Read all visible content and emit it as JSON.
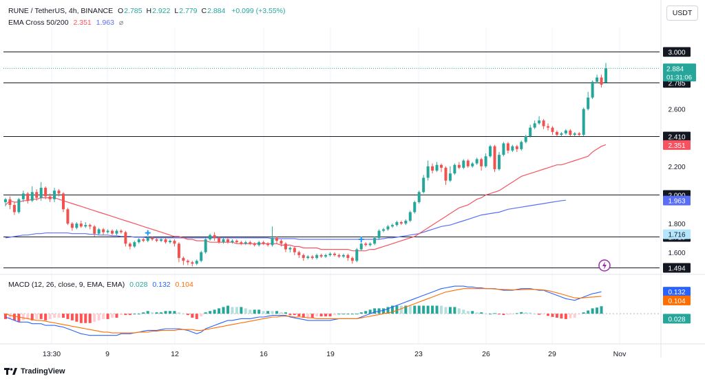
{
  "header": {
    "symbol": "RUNE / TetherUS, 4h, BINANCE",
    "ohlc": [
      {
        "k": "O",
        "v": "2.785"
      },
      {
        "k": "H",
        "v": "2.922"
      },
      {
        "k": "L",
        "v": "2.779"
      },
      {
        "k": "C",
        "v": "2.884"
      }
    ],
    "change": "+0.099 (+3.55%)",
    "ema_label": "EMA Cross 50/200",
    "ema_short": "2.351",
    "ema_long": "1.963",
    "ema_suffix": "⌀",
    "currency_button": "USDT",
    "macd_label": "MACD (12, 26, close, 9, EMA, EMA)",
    "macd_hist": "0.028",
    "macd_line": "0.132",
    "macd_signal": "0.104",
    "brand": "TradingView"
  },
  "colors": {
    "up": "#26a69a",
    "down": "#ef5350",
    "ema_short": "#f7525f",
    "ema_long": "#5a6ef5",
    "macd_line": "#2962ff",
    "macd_signal": "#ff6d00",
    "level": "#131722",
    "axis_text": "#131722",
    "grid": "#f0f3fa"
  },
  "chart_data": {
    "type": "candlestick",
    "x_ticks": [
      "13:30",
      "9",
      "12",
      "16",
      "19",
      "23",
      "26",
      "29",
      "Nov"
    ],
    "price_ticks": [
      "2.600",
      "2.200",
      "1.800",
      "1.600"
    ],
    "horizontal_levels": [
      "3.000",
      "2.785",
      "2.410",
      "2.000",
      "1.710",
      "1.494"
    ],
    "last_price": {
      "value": "2.884",
      "countdown": "01:31:06"
    },
    "ema_labels": {
      "short": "2.351",
      "long": "1.963",
      "cross": "1.716"
    },
    "ylim": [
      1.45,
      3.15
    ],
    "candles": [
      [
        1.95,
        1.97,
        1.92,
        1.98
      ],
      [
        1.97,
        1.93,
        1.9,
        1.99
      ],
      [
        1.93,
        1.88,
        1.86,
        1.95
      ],
      [
        1.88,
        1.97,
        1.87,
        1.98
      ],
      [
        1.97,
        2.01,
        1.95,
        2.03
      ],
      [
        2.01,
        1.96,
        1.94,
        2.02
      ],
      [
        1.96,
        2.02,
        1.95,
        2.06
      ],
      [
        2.02,
        1.98,
        1.96,
        2.04
      ],
      [
        1.98,
        2.05,
        1.96,
        2.09
      ],
      [
        2.05,
        1.99,
        1.97,
        2.06
      ],
      [
        1.99,
        1.97,
        1.95,
        2.01
      ],
      [
        1.97,
        2.03,
        1.95,
        2.05
      ],
      [
        2.03,
        2.01,
        1.99,
        2.04
      ],
      [
        2.01,
        1.9,
        1.88,
        2.02
      ],
      [
        1.9,
        1.8,
        1.79,
        1.91
      ],
      [
        1.8,
        1.77,
        1.75,
        1.81
      ],
      [
        1.77,
        1.8,
        1.76,
        1.81
      ],
      [
        1.8,
        1.78,
        1.77,
        1.82
      ],
      [
        1.78,
        1.79,
        1.77,
        1.81
      ],
      [
        1.79,
        1.78,
        1.76,
        1.8
      ],
      [
        1.78,
        1.73,
        1.71,
        1.79
      ],
      [
        1.73,
        1.76,
        1.72,
        1.77
      ],
      [
        1.76,
        1.74,
        1.72,
        1.77
      ],
      [
        1.74,
        1.75,
        1.73,
        1.76
      ],
      [
        1.75,
        1.73,
        1.72,
        1.76
      ],
      [
        1.73,
        1.75,
        1.72,
        1.76
      ],
      [
        1.75,
        1.74,
        1.73,
        1.76
      ],
      [
        1.74,
        1.66,
        1.64,
        1.75
      ],
      [
        1.66,
        1.64,
        1.62,
        1.67
      ],
      [
        1.64,
        1.67,
        1.63,
        1.68
      ],
      [
        1.67,
        1.69,
        1.66,
        1.7
      ],
      [
        1.69,
        1.68,
        1.67,
        1.7
      ],
      [
        1.68,
        1.7,
        1.67,
        1.71
      ],
      [
        1.7,
        1.69,
        1.68,
        1.71
      ],
      [
        1.69,
        1.68,
        1.67,
        1.7
      ],
      [
        1.68,
        1.69,
        1.67,
        1.7
      ],
      [
        1.69,
        1.67,
        1.66,
        1.7
      ],
      [
        1.67,
        1.68,
        1.66,
        1.69
      ],
      [
        1.68,
        1.66,
        1.64,
        1.69
      ],
      [
        1.66,
        1.56,
        1.53,
        1.67
      ],
      [
        1.56,
        1.54,
        1.51,
        1.57
      ],
      [
        1.54,
        1.53,
        1.51,
        1.55
      ],
      [
        1.53,
        1.52,
        1.5,
        1.54
      ],
      [
        1.52,
        1.54,
        1.51,
        1.55
      ],
      [
        1.54,
        1.6,
        1.53,
        1.61
      ],
      [
        1.6,
        1.69,
        1.59,
        1.7
      ],
      [
        1.69,
        1.72,
        1.68,
        1.73
      ],
      [
        1.72,
        1.7,
        1.68,
        1.74
      ],
      [
        1.7,
        1.67,
        1.66,
        1.71
      ],
      [
        1.67,
        1.69,
        1.66,
        1.7
      ],
      [
        1.69,
        1.67,
        1.66,
        1.7
      ],
      [
        1.67,
        1.68,
        1.66,
        1.69
      ],
      [
        1.68,
        1.67,
        1.66,
        1.69
      ],
      [
        1.67,
        1.66,
        1.65,
        1.68
      ],
      [
        1.66,
        1.67,
        1.65,
        1.68
      ],
      [
        1.67,
        1.66,
        1.65,
        1.68
      ],
      [
        1.66,
        1.65,
        1.64,
        1.67
      ],
      [
        1.65,
        1.67,
        1.64,
        1.68
      ],
      [
        1.67,
        1.66,
        1.65,
        1.68
      ],
      [
        1.66,
        1.65,
        1.64,
        1.67
      ],
      [
        1.65,
        1.7,
        1.64,
        1.78
      ],
      [
        1.7,
        1.68,
        1.66,
        1.71
      ],
      [
        1.68,
        1.66,
        1.64,
        1.69
      ],
      [
        1.66,
        1.62,
        1.6,
        1.67
      ],
      [
        1.62,
        1.63,
        1.6,
        1.64
      ],
      [
        1.63,
        1.6,
        1.58,
        1.64
      ],
      [
        1.6,
        1.58,
        1.56,
        1.61
      ],
      [
        1.58,
        1.56,
        1.54,
        1.59
      ],
      [
        1.56,
        1.57,
        1.55,
        1.58
      ],
      [
        1.57,
        1.56,
        1.55,
        1.58
      ],
      [
        1.56,
        1.58,
        1.55,
        1.59
      ],
      [
        1.58,
        1.57,
        1.56,
        1.59
      ],
      [
        1.57,
        1.58,
        1.56,
        1.59
      ],
      [
        1.58,
        1.59,
        1.57,
        1.6
      ],
      [
        1.59,
        1.58,
        1.57,
        1.6
      ],
      [
        1.58,
        1.57,
        1.56,
        1.59
      ],
      [
        1.57,
        1.58,
        1.56,
        1.59
      ],
      [
        1.58,
        1.56,
        1.54,
        1.59
      ],
      [
        1.56,
        1.54,
        1.52,
        1.57
      ],
      [
        1.54,
        1.62,
        1.53,
        1.63
      ],
      [
        1.62,
        1.66,
        1.61,
        1.67
      ],
      [
        1.66,
        1.65,
        1.64,
        1.67
      ],
      [
        1.65,
        1.66,
        1.64,
        1.67
      ],
      [
        1.66,
        1.7,
        1.65,
        1.71
      ],
      [
        1.7,
        1.75,
        1.69,
        1.76
      ],
      [
        1.75,
        1.76,
        1.74,
        1.77
      ],
      [
        1.76,
        1.78,
        1.75,
        1.79
      ],
      [
        1.78,
        1.79,
        1.77,
        1.8
      ],
      [
        1.79,
        1.81,
        1.78,
        1.82
      ],
      [
        1.81,
        1.8,
        1.79,
        1.82
      ],
      [
        1.8,
        1.82,
        1.79,
        1.83
      ],
      [
        1.82,
        1.88,
        1.81,
        1.89
      ],
      [
        1.88,
        1.95,
        1.87,
        1.96
      ],
      [
        1.95,
        2.02,
        1.94,
        2.03
      ],
      [
        2.02,
        2.12,
        2.01,
        2.14
      ],
      [
        2.12,
        2.2,
        2.1,
        2.24
      ],
      [
        2.2,
        2.17,
        2.15,
        2.22
      ],
      [
        2.17,
        2.21,
        2.16,
        2.23
      ],
      [
        2.21,
        2.19,
        2.16,
        2.22
      ],
      [
        2.19,
        2.1,
        2.07,
        2.2
      ],
      [
        2.1,
        2.15,
        2.09,
        2.2
      ],
      [
        2.15,
        2.21,
        2.14,
        2.22
      ],
      [
        2.21,
        2.19,
        2.18,
        2.23
      ],
      [
        2.19,
        2.24,
        2.18,
        2.25
      ],
      [
        2.24,
        2.2,
        2.19,
        2.25
      ],
      [
        2.2,
        2.22,
        2.19,
        2.23
      ],
      [
        2.22,
        2.25,
        2.21,
        2.26
      ],
      [
        2.25,
        2.2,
        2.17,
        2.26
      ],
      [
        2.2,
        2.27,
        2.19,
        2.29
      ],
      [
        2.27,
        2.34,
        2.26,
        2.35
      ],
      [
        2.34,
        2.18,
        2.16,
        2.35
      ],
      [
        2.18,
        2.28,
        2.17,
        2.3
      ],
      [
        2.28,
        2.36,
        2.27,
        2.37
      ],
      [
        2.36,
        2.31,
        2.29,
        2.37
      ],
      [
        2.31,
        2.34,
        2.3,
        2.35
      ],
      [
        2.34,
        2.32,
        2.3,
        2.35
      ],
      [
        2.32,
        2.37,
        2.31,
        2.38
      ],
      [
        2.37,
        2.41,
        2.36,
        2.42
      ],
      [
        2.41,
        2.47,
        2.4,
        2.49
      ],
      [
        2.47,
        2.5,
        2.46,
        2.52
      ],
      [
        2.5,
        2.52,
        2.49,
        2.55
      ],
      [
        2.52,
        2.48,
        2.46,
        2.53
      ],
      [
        2.48,
        2.47,
        2.45,
        2.5
      ],
      [
        2.47,
        2.44,
        2.42,
        2.48
      ],
      [
        2.44,
        2.42,
        2.41,
        2.45
      ],
      [
        2.42,
        2.43,
        2.41,
        2.44
      ],
      [
        2.43,
        2.45,
        2.42,
        2.46
      ],
      [
        2.45,
        2.42,
        2.41,
        2.46
      ],
      [
        2.42,
        2.43,
        2.41,
        2.44
      ],
      [
        2.43,
        2.42,
        2.41,
        2.44
      ],
      [
        2.42,
        2.6,
        2.41,
        2.61
      ],
      [
        2.6,
        2.68,
        2.59,
        2.72
      ],
      [
        2.68,
        2.79,
        2.67,
        2.8
      ],
      [
        2.79,
        2.82,
        2.78,
        2.84
      ],
      [
        2.82,
        2.77,
        2.75,
        2.84
      ],
      [
        2.785,
        2.884,
        2.779,
        2.922
      ]
    ],
    "ema_short": [
      1.93,
      1.96,
      1.95,
      1.95,
      1.96,
      1.96,
      1.97,
      1.97,
      1.98,
      1.98,
      1.98,
      1.98,
      1.97,
      1.96,
      1.95,
      1.94,
      1.93,
      1.92,
      1.91,
      1.9,
      1.89,
      1.88,
      1.87,
      1.86,
      1.85,
      1.84,
      1.83,
      1.82,
      1.81,
      1.8,
      1.79,
      1.78,
      1.77,
      1.76,
      1.75,
      1.74,
      1.73,
      1.72,
      1.71,
      1.71,
      1.7,
      1.69,
      1.69,
      1.68,
      1.68,
      1.68,
      1.67,
      1.67,
      1.67,
      1.67,
      1.67,
      1.67,
      1.66,
      1.66,
      1.66,
      1.66,
      1.66,
      1.66,
      1.66,
      1.66,
      1.66,
      1.66,
      1.65,
      1.65,
      1.65,
      1.64,
      1.64,
      1.63,
      1.63,
      1.63,
      1.63,
      1.62,
      1.62,
      1.62,
      1.62,
      1.62,
      1.62,
      1.62,
      1.61,
      1.61,
      1.61,
      1.61,
      1.62,
      1.62,
      1.63,
      1.64,
      1.65,
      1.66,
      1.67,
      1.68,
      1.69,
      1.7,
      1.71,
      1.73,
      1.75,
      1.77,
      1.79,
      1.81,
      1.83,
      1.85,
      1.87,
      1.89,
      1.91,
      1.92,
      1.93,
      1.95,
      1.97,
      1.98,
      2.0,
      2.01,
      2.02,
      2.03,
      2.05,
      2.07,
      2.09,
      2.11,
      2.13,
      2.14,
      2.15,
      2.16,
      2.17,
      2.18,
      2.19,
      2.2,
      2.21,
      2.21,
      2.22,
      2.23,
      2.24,
      2.25,
      2.26,
      2.27,
      2.3,
      2.32,
      2.34,
      2.351
    ],
    "ema_long": [
      1.7,
      1.705,
      1.71,
      1.715,
      1.72,
      1.72,
      1.725,
      1.73,
      1.73,
      1.735,
      1.735,
      1.735,
      1.735,
      1.735,
      1.735,
      1.73,
      1.73,
      1.73,
      1.73,
      1.725,
      1.725,
      1.72,
      1.72,
      1.72,
      1.715,
      1.715,
      1.71,
      1.71,
      1.71,
      1.705,
      1.705,
      1.705,
      1.7,
      1.7,
      1.7,
      1.7,
      1.7,
      1.7,
      1.7,
      1.7,
      1.7,
      1.7,
      1.7,
      1.7,
      1.7,
      1.7,
      1.7,
      1.7,
      1.7,
      1.7,
      1.7,
      1.7,
      1.7,
      1.7,
      1.7,
      1.7,
      1.7,
      1.7,
      1.7,
      1.7,
      1.695,
      1.695,
      1.695,
      1.695,
      1.695,
      1.695,
      1.69,
      1.69,
      1.69,
      1.69,
      1.69,
      1.69,
      1.69,
      1.69,
      1.69,
      1.69,
      1.69,
      1.69,
      1.69,
      1.69,
      1.69,
      1.69,
      1.69,
      1.69,
      1.69,
      1.695,
      1.7,
      1.7,
      1.705,
      1.71,
      1.715,
      1.72,
      1.725,
      1.73,
      1.74,
      1.75,
      1.76,
      1.77,
      1.78,
      1.785,
      1.79,
      1.8,
      1.81,
      1.82,
      1.83,
      1.84,
      1.85,
      1.86,
      1.865,
      1.87,
      1.875,
      1.88,
      1.89,
      1.9,
      1.905,
      1.91,
      1.915,
      1.92,
      1.925,
      1.93,
      1.935,
      1.94,
      1.945,
      1.95,
      1.955,
      1.96,
      1.963
    ],
    "macd": [
      -0.02,
      -0.03,
      -0.04,
      -0.05,
      -0.05,
      -0.05,
      -0.06,
      -0.06,
      -0.06,
      -0.07,
      -0.07,
      -0.07,
      -0.075,
      -0.08,
      -0.09,
      -0.1,
      -0.11,
      -0.12,
      -0.125,
      -0.13,
      -0.13,
      -0.13,
      -0.13,
      -0.13,
      -0.13,
      -0.13,
      -0.12,
      -0.12,
      -0.12,
      -0.115,
      -0.11,
      -0.105,
      -0.1,
      -0.1,
      -0.1,
      -0.095,
      -0.09,
      -0.09,
      -0.09,
      -0.09,
      -0.095,
      -0.1,
      -0.11,
      -0.12,
      -0.11,
      -0.09,
      -0.08,
      -0.07,
      -0.06,
      -0.05,
      -0.04,
      -0.04,
      -0.035,
      -0.03,
      -0.03,
      -0.03,
      -0.025,
      -0.02,
      -0.02,
      -0.015,
      -0.01,
      -0.01,
      -0.01,
      -0.01,
      -0.02,
      -0.025,
      -0.03,
      -0.035,
      -0.04,
      -0.04,
      -0.04,
      -0.04,
      -0.04,
      -0.04,
      -0.035,
      -0.03,
      -0.03,
      -0.03,
      -0.03,
      -0.03,
      -0.02,
      -0.01,
      0.0,
      0.01,
      0.015,
      0.02,
      0.03,
      0.04,
      0.05,
      0.06,
      0.07,
      0.08,
      0.09,
      0.1,
      0.11,
      0.12,
      0.13,
      0.14,
      0.15,
      0.155,
      0.16,
      0.165,
      0.165,
      0.165,
      0.16,
      0.16,
      0.155,
      0.155,
      0.15,
      0.15,
      0.15,
      0.145,
      0.14,
      0.14,
      0.14,
      0.145,
      0.15,
      0.15,
      0.15,
      0.145,
      0.14,
      0.14,
      0.13,
      0.12,
      0.11,
      0.1,
      0.09,
      0.085,
      0.08,
      0.09,
      0.1,
      0.11,
      0.12,
      0.125,
      0.132
    ],
    "macd_signal": [
      0.0,
      -0.01,
      -0.015,
      -0.02,
      -0.025,
      -0.03,
      -0.035,
      -0.04,
      -0.04,
      -0.045,
      -0.05,
      -0.055,
      -0.06,
      -0.065,
      -0.07,
      -0.075,
      -0.08,
      -0.085,
      -0.09,
      -0.095,
      -0.1,
      -0.105,
      -0.11,
      -0.11,
      -0.115,
      -0.115,
      -0.115,
      -0.115,
      -0.115,
      -0.115,
      -0.11,
      -0.11,
      -0.11,
      -0.105,
      -0.105,
      -0.1,
      -0.1,
      -0.1,
      -0.1,
      -0.095,
      -0.095,
      -0.095,
      -0.095,
      -0.1,
      -0.1,
      -0.095,
      -0.09,
      -0.085,
      -0.08,
      -0.075,
      -0.07,
      -0.065,
      -0.06,
      -0.055,
      -0.05,
      -0.045,
      -0.04,
      -0.035,
      -0.03,
      -0.025,
      -0.02,
      -0.02,
      -0.015,
      -0.015,
      -0.015,
      -0.02,
      -0.02,
      -0.02,
      -0.025,
      -0.025,
      -0.03,
      -0.03,
      -0.03,
      -0.03,
      -0.03,
      -0.03,
      -0.03,
      -0.03,
      -0.03,
      -0.03,
      -0.025,
      -0.02,
      -0.015,
      -0.01,
      -0.005,
      0.0,
      0.005,
      0.01,
      0.02,
      0.03,
      0.04,
      0.05,
      0.06,
      0.07,
      0.08,
      0.09,
      0.1,
      0.11,
      0.12,
      0.13,
      0.135,
      0.14,
      0.145,
      0.15,
      0.15,
      0.15,
      0.15,
      0.15,
      0.15,
      0.15,
      0.148,
      0.146,
      0.145,
      0.144,
      0.143,
      0.143,
      0.144,
      0.145,
      0.146,
      0.145,
      0.144,
      0.142,
      0.138,
      0.132,
      0.125,
      0.118,
      0.11,
      0.102,
      0.095,
      0.093,
      0.095,
      0.098,
      0.1,
      0.102,
      0.104
    ]
  }
}
